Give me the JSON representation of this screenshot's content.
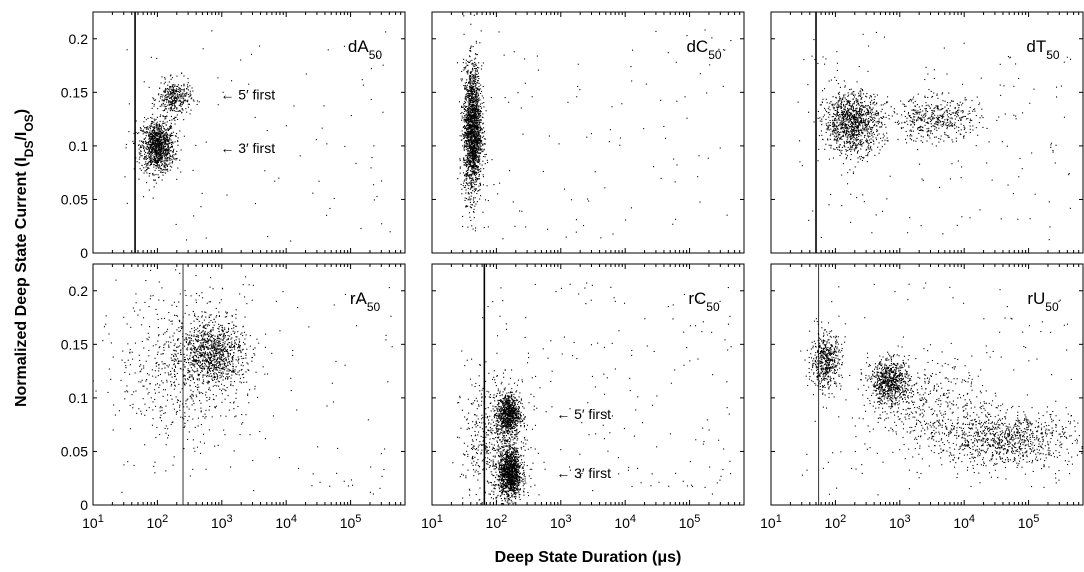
{
  "figure": {
    "ylabel_main": "Normalized Deep State Current (I",
    "ylabel_sub1": "DS",
    "ylabel_mid": "/I",
    "ylabel_sub2": "OS",
    "ylabel_end": ")",
    "xlabel": "Deep State Duration (μs)"
  },
  "chart_data": [
    {
      "type": "scatter",
      "panel": "dA50",
      "label_base": "dA",
      "label_sub": "50",
      "xscale": "log",
      "xlim": [
        10,
        700000
      ],
      "ylim": [
        0,
        0.225
      ],
      "yticks": [
        0,
        0.05,
        0.1,
        0.15,
        0.2
      ],
      "ytick_labels": [
        "0",
        "0.05",
        "0.1",
        "0.15",
        "0.2"
      ],
      "vline_x": 45,
      "vline_weight": "thick",
      "clusters": [
        {
          "x_center": 100,
          "y_center": 0.1,
          "x_spread_decades": 0.13,
          "y_spread": 0.012,
          "points": 1100
        },
        {
          "x_center": 180,
          "y_center": 0.145,
          "x_spread_decades": 0.13,
          "y_spread": 0.008,
          "points": 350
        }
      ],
      "background_points": 80,
      "annotations": [
        {
          "text": "← 5′ first",
          "x": 950,
          "y": 0.148
        },
        {
          "text": "← 3′ first",
          "x": 950,
          "y": 0.098
        }
      ]
    },
    {
      "type": "scatter",
      "panel": "dC50",
      "label_base": "dC",
      "label_sub": "50",
      "xscale": "log",
      "xlim": [
        10,
        700000
      ],
      "ylim": [
        0,
        0.225
      ],
      "yticks": [
        0,
        0.05,
        0.1,
        0.15,
        0.2
      ],
      "ytick_labels": [
        "",
        "",
        "",
        "",
        ""
      ],
      "clusters": [
        {
          "x_center": 42,
          "y_center": 0.115,
          "x_spread_decades": 0.07,
          "y_spread": 0.03,
          "points": 1900
        }
      ],
      "background_points": 110,
      "annotations": []
    },
    {
      "type": "scatter",
      "panel": "dT50",
      "label_base": "dT",
      "label_sub": "50",
      "xscale": "log",
      "xlim": [
        10,
        700000
      ],
      "ylim": [
        0,
        0.225
      ],
      "yticks": [
        0,
        0.05,
        0.1,
        0.15,
        0.2
      ],
      "ytick_labels": [
        "",
        "",
        "",
        "",
        ""
      ],
      "vline_x": 50,
      "vline_weight": "thick",
      "clusters": [
        {
          "x_center": 180,
          "y_center": 0.122,
          "x_spread_decades": 0.22,
          "y_spread": 0.014,
          "points": 1100
        },
        {
          "x_center": 3500,
          "y_center": 0.125,
          "x_spread_decades": 0.35,
          "y_spread": 0.01,
          "points": 450
        }
      ],
      "background_points": 160,
      "annotations": []
    },
    {
      "type": "scatter",
      "panel": "rA50",
      "label_base": "rA",
      "label_sub": "50",
      "xscale": "log",
      "xlim": [
        10,
        700000
      ],
      "ylim": [
        0,
        0.225
      ],
      "yticks": [
        0,
        0.05,
        0.1,
        0.15,
        0.2
      ],
      "ytick_labels": [
        "0",
        "0.05",
        "0.1",
        "0.15",
        "0.2"
      ],
      "vline_x": 250,
      "vline_weight": "thin",
      "clusters": [
        {
          "x_center": 700,
          "y_center": 0.142,
          "x_spread_decades": 0.25,
          "y_spread": 0.015,
          "points": 900
        },
        {
          "x_center": 250,
          "y_center": 0.13,
          "x_spread_decades": 0.5,
          "y_spread": 0.035,
          "points": 600
        }
      ],
      "background_points": 120,
      "annotations": []
    },
    {
      "type": "scatter",
      "panel": "rC50",
      "label_base": "rC",
      "label_sub": "50",
      "xscale": "log",
      "xlim": [
        10,
        700000
      ],
      "ylim": [
        0,
        0.225
      ],
      "yticks": [
        0,
        0.05,
        0.1,
        0.15,
        0.2
      ],
      "ytick_labels": [
        "",
        "",
        "",
        "",
        ""
      ],
      "vline_x": 65,
      "vline_weight": "thick",
      "clusters": [
        {
          "x_center": 150,
          "y_center": 0.085,
          "x_spread_decades": 0.09,
          "y_spread": 0.01,
          "points": 800
        },
        {
          "x_center": 160,
          "y_center": 0.03,
          "x_spread_decades": 0.09,
          "y_spread": 0.012,
          "points": 1200
        },
        {
          "x_center": 90,
          "y_center": 0.06,
          "x_spread_decades": 0.25,
          "y_spread": 0.03,
          "points": 500
        }
      ],
      "background_points": 200,
      "annotations": [
        {
          "text": "← 5′ first",
          "x": 850,
          "y": 0.085
        },
        {
          "text": "← 3′ first",
          "x": 850,
          "y": 0.03
        }
      ]
    },
    {
      "type": "scatter",
      "panel": "rU50",
      "label_base": "rU",
      "label_sub": "50",
      "xscale": "log",
      "xlim": [
        10,
        700000
      ],
      "ylim": [
        0,
        0.225
      ],
      "yticks": [
        0,
        0.05,
        0.1,
        0.15,
        0.2
      ],
      "ytick_labels": [
        "",
        "",
        "",
        "",
        ""
      ],
      "vline_x": 55,
      "vline_weight": "thin",
      "clusters": [
        {
          "x_center": 70,
          "y_center": 0.135,
          "x_spread_decades": 0.12,
          "y_spread": 0.013,
          "points": 500
        },
        {
          "x_center": 700,
          "y_center": 0.115,
          "x_spread_decades": 0.15,
          "y_spread": 0.01,
          "points": 700
        },
        {
          "x_center": 40000,
          "y_center": 0.062,
          "x_spread_decades": 0.55,
          "y_spread": 0.013,
          "points": 900
        },
        {
          "x_center": 3000,
          "y_center": 0.095,
          "x_spread_decades": 0.45,
          "y_spread": 0.02,
          "points": 400
        }
      ],
      "background_points": 150,
      "annotations": []
    }
  ],
  "xticks": {
    "exponents": [
      1,
      2,
      3,
      4,
      5
    ],
    "base_label": "10"
  }
}
